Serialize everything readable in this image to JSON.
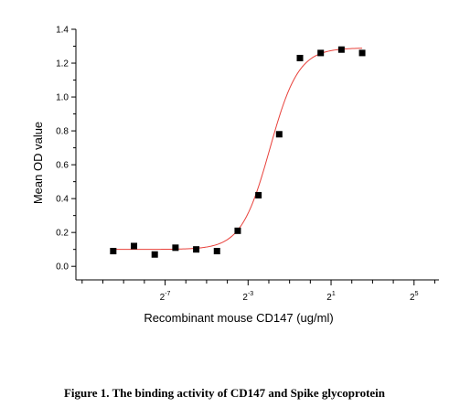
{
  "chart_data": {
    "type": "scatter",
    "xlabel": "Recombinant mouse CD147 (ug/ml)",
    "ylabel": "Mean OD value",
    "x_scale": "log2",
    "xlim": [
      -11.3,
      6.2
    ],
    "ylim": [
      -0.08,
      1.4
    ],
    "y_ticks": [
      0.0,
      0.2,
      0.4,
      0.6,
      0.8,
      1.0,
      1.2,
      1.4
    ],
    "y_tick_labels": [
      "0.0",
      "0.2",
      "0.4",
      "0.6",
      "0.8",
      "1.0",
      "1.2",
      "1.4"
    ],
    "x_ticks_exponents": [
      -7,
      -3,
      1,
      5
    ],
    "x_tick_labels": [
      {
        "base": "2",
        "exp": "-7"
      },
      {
        "base": "2",
        "exp": "-3"
      },
      {
        "base": "2",
        "exp": "1"
      },
      {
        "base": "2",
        "exp": "5"
      }
    ],
    "points_x_log2": [
      -9.5,
      -8.5,
      -7.5,
      -6.5,
      -5.5,
      -4.5,
      -3.5,
      -2.5,
      -1.5,
      -0.5,
      0.5,
      1.5,
      2.5
    ],
    "points_y": [
      0.09,
      0.12,
      0.07,
      0.11,
      0.1,
      0.09,
      0.21,
      0.42,
      0.78,
      1.23,
      1.26,
      1.28,
      1.26
    ],
    "fit_curve": {
      "model": "4PL",
      "bottom": 0.1,
      "top": 1.29,
      "inflection_log2": -1.95,
      "slope": 1.45,
      "color": "#e8403a"
    },
    "marker_color": "#000000",
    "grid": false,
    "legend": "none"
  },
  "caption": "Figure 1. The binding activity of CD147 and Spike glycoprotein"
}
